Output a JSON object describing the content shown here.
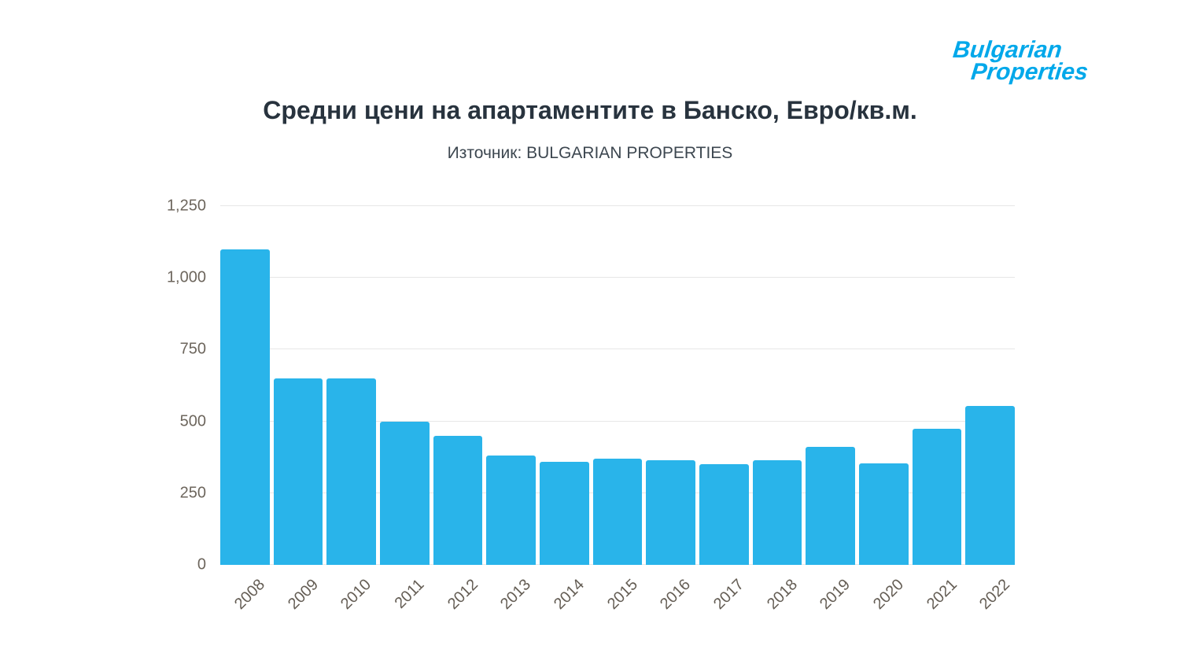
{
  "logo": {
    "line1": "Bulgarian",
    "line2": "Properties",
    "color": "#00a8ea"
  },
  "header": {
    "title": "Средни цени на апартаментите в Банско, Евро/кв.м.",
    "subtitle": "Източник: BULGARIAN PROPERTIES"
  },
  "chart_data": {
    "type": "bar",
    "title": "Средни цени на апартаментите в Банско, Евро/кв.м.",
    "subtitle": "Източник: BULGARIAN PROPERTIES",
    "categories": [
      "2008",
      "2009",
      "2010",
      "2011",
      "2012",
      "2013",
      "2014",
      "2015",
      "2016",
      "2017",
      "2018",
      "2019",
      "2020",
      "2021",
      "2022"
    ],
    "values": [
      1100,
      650,
      650,
      500,
      450,
      380,
      360,
      370,
      365,
      350,
      365,
      410,
      355,
      475,
      555
    ],
    "xlabel": "",
    "ylabel": "",
    "ylim": [
      0,
      1250
    ],
    "yticks": [
      0,
      250,
      500,
      750,
      1000,
      1250
    ],
    "ytick_labels": [
      "0",
      "250",
      "500",
      "750",
      "1,000",
      "1,250"
    ],
    "grid": true,
    "legend": "none",
    "bar_color": "#29b4ea"
  }
}
